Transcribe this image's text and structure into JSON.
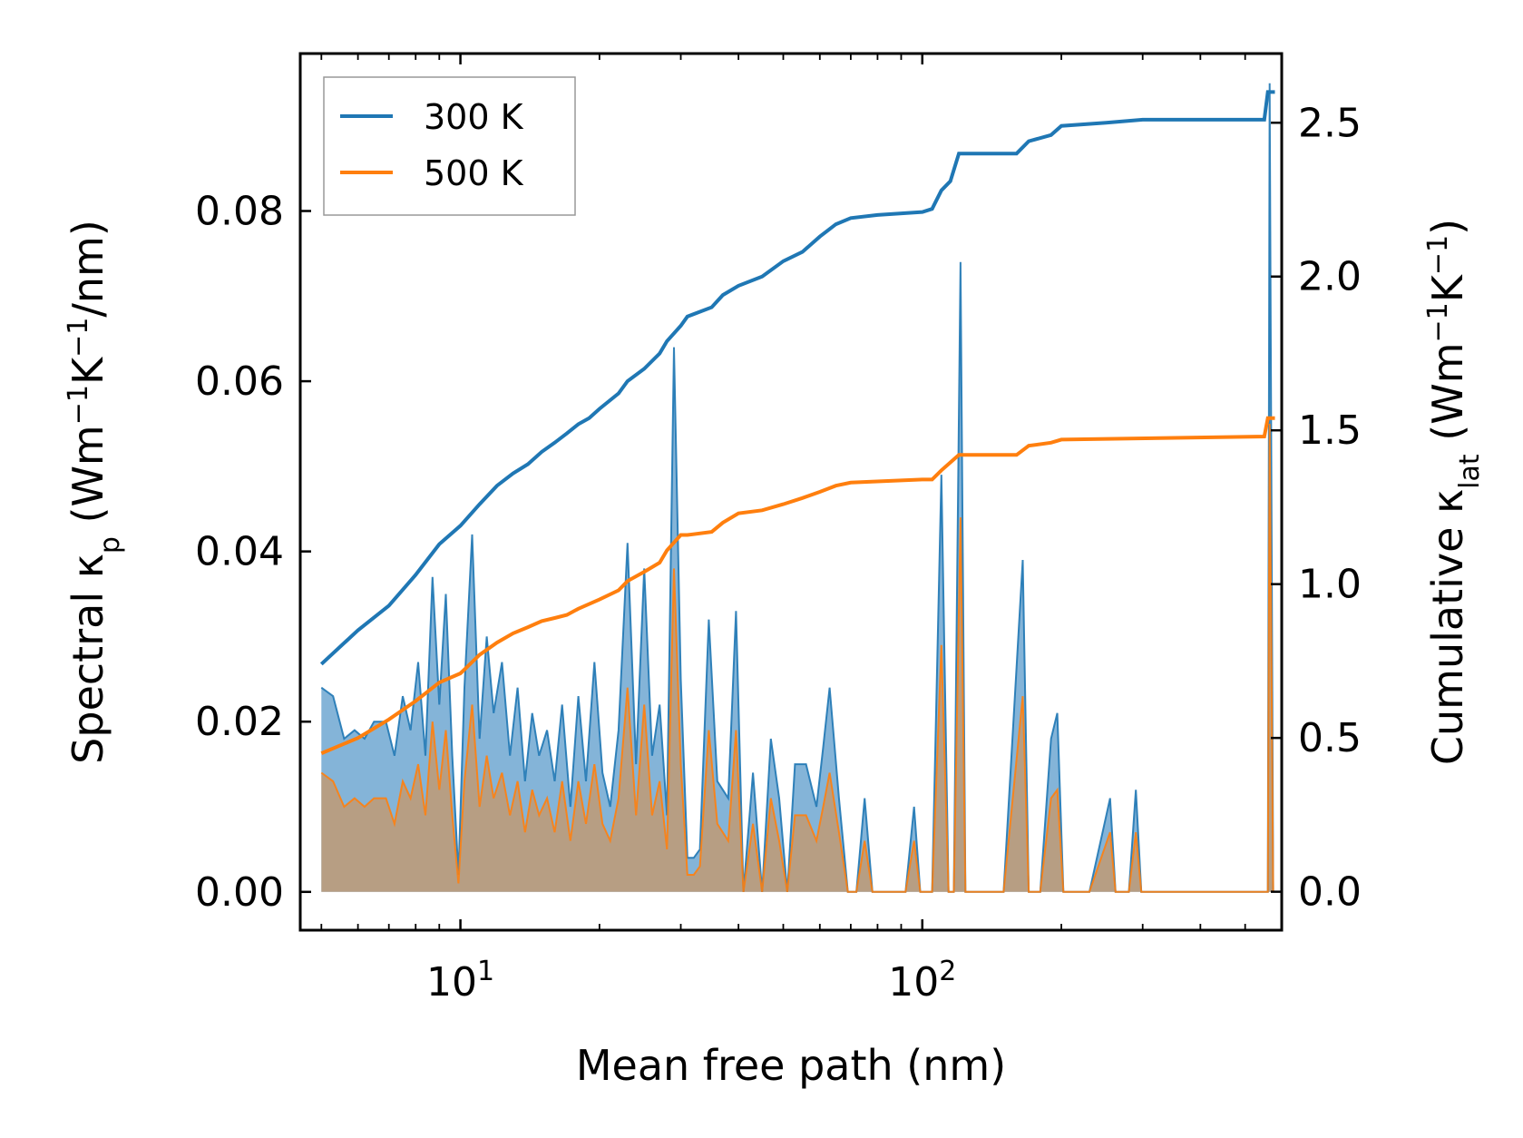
{
  "chart_data": {
    "type": "line",
    "x_scale": "log",
    "xlabel": "Mean free path (nm)",
    "xlim": [
      4.5,
      600
    ],
    "x_ticks": [
      {
        "value": 10,
        "base": "10",
        "exp": "1"
      },
      {
        "value": 100,
        "base": "10",
        "exp": "2"
      }
    ],
    "left_axis": {
      "label": {
        "pre": "Spectral κ",
        "sub": "p",
        "mid": " (Wm",
        "sup1": "−1",
        "k": "K",
        "sup2": "−1",
        "post": "/nm)"
      },
      "ylim": [
        -0.0045,
        0.0985
      ],
      "ticks": [
        0,
        0.02,
        0.04,
        0.06,
        0.08
      ],
      "tick_labels": [
        "0.00",
        "0.02",
        "0.04",
        "0.06",
        "0.08"
      ]
    },
    "right_axis": {
      "label": {
        "pre": "Cumulative κ",
        "sub": "lat",
        "mid": " (Wm",
        "sup1": "−1",
        "k": "K",
        "sup2": "−1",
        "post": ")"
      },
      "ylim": [
        -0.125,
        2.725
      ],
      "ticks": [
        0,
        0.5,
        1.0,
        1.5,
        2.0,
        2.5
      ],
      "tick_labels": [
        "0.0",
        "0.5",
        "1.0",
        "1.5",
        "2.0",
        "2.5"
      ]
    },
    "series": [
      {
        "name": "300 K",
        "color": "#1f77b4",
        "fill": "#5b9bcb",
        "cumulative": [
          [
            5,
            0.74
          ],
          [
            6,
            0.85
          ],
          [
            7,
            0.93
          ],
          [
            8,
            1.03
          ],
          [
            9,
            1.13
          ],
          [
            10,
            1.19
          ],
          [
            11,
            1.26
          ],
          [
            12,
            1.32
          ],
          [
            13,
            1.36
          ],
          [
            14,
            1.39
          ],
          [
            15,
            1.43
          ],
          [
            16,
            1.46
          ],
          [
            17,
            1.49
          ],
          [
            18,
            1.52
          ],
          [
            19,
            1.54
          ],
          [
            20,
            1.57
          ],
          [
            22,
            1.62
          ],
          [
            23,
            1.66
          ],
          [
            25,
            1.7
          ],
          [
            27,
            1.75
          ],
          [
            28,
            1.79
          ],
          [
            30,
            1.84
          ],
          [
            31,
            1.87
          ],
          [
            35,
            1.9
          ],
          [
            37,
            1.94
          ],
          [
            40,
            1.97
          ],
          [
            45,
            2.0
          ],
          [
            50,
            2.05
          ],
          [
            55,
            2.08
          ],
          [
            60,
            2.13
          ],
          [
            65,
            2.17
          ],
          [
            70,
            2.19
          ],
          [
            80,
            2.2
          ],
          [
            100,
            2.21
          ],
          [
            105,
            2.22
          ],
          [
            110,
            2.28
          ],
          [
            115,
            2.31
          ],
          [
            120,
            2.4
          ],
          [
            160,
            2.4
          ],
          [
            170,
            2.44
          ],
          [
            190,
            2.46
          ],
          [
            200,
            2.49
          ],
          [
            250,
            2.5
          ],
          [
            300,
            2.51
          ],
          [
            550,
            2.51
          ],
          [
            560,
            2.6
          ],
          [
            580,
            2.6
          ]
        ],
        "spectral": [
          [
            5,
            0.024
          ],
          [
            5.3,
            0.023
          ],
          [
            5.6,
            0.018
          ],
          [
            5.9,
            0.019
          ],
          [
            6.2,
            0.018
          ],
          [
            6.5,
            0.02
          ],
          [
            6.9,
            0.02
          ],
          [
            7.2,
            0.016
          ],
          [
            7.5,
            0.023
          ],
          [
            7.8,
            0.019
          ],
          [
            8.1,
            0.027
          ],
          [
            8.4,
            0.016
          ],
          [
            8.7,
            0.037
          ],
          [
            9.0,
            0.022
          ],
          [
            9.3,
            0.035
          ],
          [
            9.6,
            0.016
          ],
          [
            9.9,
            0.002
          ],
          [
            10.2,
            0.024
          ],
          [
            10.6,
            0.042
          ],
          [
            11.0,
            0.018
          ],
          [
            11.4,
            0.03
          ],
          [
            11.8,
            0.021
          ],
          [
            12.3,
            0.027
          ],
          [
            12.8,
            0.016
          ],
          [
            13.3,
            0.024
          ],
          [
            13.8,
            0.013
          ],
          [
            14.3,
            0.021
          ],
          [
            14.8,
            0.016
          ],
          [
            15.4,
            0.019
          ],
          [
            16.0,
            0.013
          ],
          [
            16.6,
            0.022
          ],
          [
            17.3,
            0.01
          ],
          [
            18.0,
            0.023
          ],
          [
            18.7,
            0.013
          ],
          [
            19.5,
            0.027
          ],
          [
            20.3,
            0.014
          ],
          [
            21.1,
            0.01
          ],
          [
            22.0,
            0.019
          ],
          [
            23.0,
            0.041
          ],
          [
            24.0,
            0.015
          ],
          [
            25.0,
            0.038
          ],
          [
            26.0,
            0.016
          ],
          [
            27.0,
            0.022
          ],
          [
            28.0,
            0.009
          ],
          [
            29.0,
            0.064
          ],
          [
            30.0,
            0.025
          ],
          [
            31.0,
            0.004
          ],
          [
            32.0,
            0.004
          ],
          [
            33.0,
            0.005
          ],
          [
            34.5,
            0.032
          ],
          [
            36.0,
            0.013
          ],
          [
            38.0,
            0.011
          ],
          [
            39.5,
            0.033
          ],
          [
            41.0,
            0.0
          ],
          [
            43.0,
            0.014
          ],
          [
            45.0,
            0.0
          ],
          [
            47.0,
            0.018
          ],
          [
            49.0,
            0.011
          ],
          [
            51.0,
            0.0
          ],
          [
            53.0,
            0.015
          ],
          [
            56.0,
            0.015
          ],
          [
            59.0,
            0.01
          ],
          [
            61.0,
            0.017
          ],
          [
            63.0,
            0.024
          ],
          [
            66.0,
            0.011
          ],
          [
            69.0,
            0.0
          ],
          [
            72.0,
            0.0
          ],
          [
            75.0,
            0.011
          ],
          [
            78.0,
            0.0
          ],
          [
            85.0,
            0.0
          ],
          [
            92.0,
            0.0
          ],
          [
            96.0,
            0.01
          ],
          [
            99.0,
            0.0
          ],
          [
            105.0,
            0.0
          ],
          [
            110.0,
            0.049
          ],
          [
            114.0,
            0.0
          ],
          [
            117.0,
            0.0
          ],
          [
            121.0,
            0.074
          ],
          [
            124.0,
            0.0
          ],
          [
            150.0,
            0.0
          ],
          [
            165.0,
            0.039
          ],
          [
            170.0,
            0.0
          ],
          [
            180.0,
            0.0
          ],
          [
            190.0,
            0.018
          ],
          [
            196.0,
            0.021
          ],
          [
            202.0,
            0.0
          ],
          [
            230.0,
            0.0
          ],
          [
            255.0,
            0.011
          ],
          [
            262.0,
            0.0
          ],
          [
            280.0,
            0.0
          ],
          [
            290.0,
            0.012
          ],
          [
            298.0,
            0.0
          ],
          [
            500.0,
            0.0
          ],
          [
            560.0,
            0.0
          ],
          [
            565.0,
            0.095
          ],
          [
            575.0,
            0.0
          ]
        ]
      },
      {
        "name": "500 K",
        "color": "#ff7f0e",
        "fill": "#c4996e",
        "cumulative": [
          [
            5,
            0.45
          ],
          [
            6,
            0.5
          ],
          [
            7,
            0.56
          ],
          [
            8,
            0.62
          ],
          [
            9,
            0.68
          ],
          [
            10,
            0.71
          ],
          [
            11,
            0.77
          ],
          [
            12,
            0.81
          ],
          [
            13,
            0.84
          ],
          [
            14,
            0.86
          ],
          [
            15,
            0.88
          ],
          [
            16,
            0.89
          ],
          [
            17,
            0.9
          ],
          [
            18,
            0.92
          ],
          [
            20,
            0.95
          ],
          [
            22,
            0.98
          ],
          [
            23,
            1.01
          ],
          [
            25,
            1.04
          ],
          [
            27,
            1.07
          ],
          [
            28,
            1.11
          ],
          [
            30,
            1.16
          ],
          [
            31,
            1.16
          ],
          [
            35,
            1.17
          ],
          [
            37,
            1.2
          ],
          [
            40,
            1.23
          ],
          [
            45,
            1.24
          ],
          [
            50,
            1.26
          ],
          [
            55,
            1.28
          ],
          [
            60,
            1.3
          ],
          [
            65,
            1.32
          ],
          [
            70,
            1.33
          ],
          [
            100,
            1.34
          ],
          [
            105,
            1.34
          ],
          [
            110,
            1.37
          ],
          [
            120,
            1.42
          ],
          [
            160,
            1.42
          ],
          [
            170,
            1.45
          ],
          [
            190,
            1.46
          ],
          [
            200,
            1.47
          ],
          [
            550,
            1.48
          ],
          [
            560,
            1.54
          ],
          [
            580,
            1.54
          ]
        ],
        "spectral": [
          [
            5,
            0.014
          ],
          [
            5.3,
            0.013
          ],
          [
            5.6,
            0.01
          ],
          [
            5.9,
            0.011
          ],
          [
            6.2,
            0.01
          ],
          [
            6.5,
            0.011
          ],
          [
            6.9,
            0.011
          ],
          [
            7.2,
            0.008
          ],
          [
            7.5,
            0.013
          ],
          [
            7.8,
            0.011
          ],
          [
            8.1,
            0.015
          ],
          [
            8.4,
            0.009
          ],
          [
            8.7,
            0.02
          ],
          [
            9.0,
            0.012
          ],
          [
            9.3,
            0.019
          ],
          [
            9.6,
            0.009
          ],
          [
            9.9,
            0.001
          ],
          [
            10.2,
            0.013
          ],
          [
            10.6,
            0.022
          ],
          [
            11.0,
            0.01
          ],
          [
            11.4,
            0.016
          ],
          [
            11.8,
            0.011
          ],
          [
            12.3,
            0.014
          ],
          [
            12.8,
            0.009
          ],
          [
            13.3,
            0.013
          ],
          [
            13.8,
            0.007
          ],
          [
            14.3,
            0.012
          ],
          [
            14.8,
            0.009
          ],
          [
            15.4,
            0.011
          ],
          [
            16.0,
            0.007
          ],
          [
            16.6,
            0.013
          ],
          [
            17.3,
            0.006
          ],
          [
            18.0,
            0.013
          ],
          [
            18.7,
            0.008
          ],
          [
            19.5,
            0.015
          ],
          [
            20.3,
            0.008
          ],
          [
            21.1,
            0.006
          ],
          [
            22.0,
            0.011
          ],
          [
            23.0,
            0.024
          ],
          [
            24.0,
            0.009
          ],
          [
            25.0,
            0.022
          ],
          [
            26.0,
            0.009
          ],
          [
            27.0,
            0.013
          ],
          [
            28.0,
            0.005
          ],
          [
            29.0,
            0.038
          ],
          [
            30.0,
            0.015
          ],
          [
            31.0,
            0.002
          ],
          [
            32.0,
            0.002
          ],
          [
            33.0,
            0.003
          ],
          [
            34.5,
            0.019
          ],
          [
            36.0,
            0.008
          ],
          [
            38.0,
            0.006
          ],
          [
            39.5,
            0.019
          ],
          [
            41.0,
            0.0
          ],
          [
            43.0,
            0.008
          ],
          [
            45.0,
            0.0
          ],
          [
            47.0,
            0.011
          ],
          [
            49.0,
            0.006
          ],
          [
            51.0,
            0.0
          ],
          [
            53.0,
            0.009
          ],
          [
            56.0,
            0.009
          ],
          [
            59.0,
            0.006
          ],
          [
            61.0,
            0.01
          ],
          [
            63.0,
            0.014
          ],
          [
            66.0,
            0.007
          ],
          [
            69.0,
            0.0
          ],
          [
            72.0,
            0.0
          ],
          [
            75.0,
            0.006
          ],
          [
            78.0,
            0.0
          ],
          [
            85.0,
            0.0
          ],
          [
            92.0,
            0.0
          ],
          [
            96.0,
            0.006
          ],
          [
            99.0,
            0.0
          ],
          [
            105.0,
            0.0
          ],
          [
            110.0,
            0.029
          ],
          [
            114.0,
            0.0
          ],
          [
            117.0,
            0.0
          ],
          [
            121.0,
            0.044
          ],
          [
            124.0,
            0.0
          ],
          [
            150.0,
            0.0
          ],
          [
            165.0,
            0.023
          ],
          [
            170.0,
            0.0
          ],
          [
            180.0,
            0.0
          ],
          [
            190.0,
            0.011
          ],
          [
            196.0,
            0.012
          ],
          [
            202.0,
            0.0
          ],
          [
            230.0,
            0.0
          ],
          [
            255.0,
            0.007
          ],
          [
            262.0,
            0.0
          ],
          [
            280.0,
            0.0
          ],
          [
            290.0,
            0.007
          ],
          [
            298.0,
            0.0
          ],
          [
            500.0,
            0.0
          ],
          [
            560.0,
            0.0
          ],
          [
            565.0,
            0.055
          ],
          [
            575.0,
            0.0
          ]
        ]
      }
    ],
    "legend_position": "upper-left"
  }
}
